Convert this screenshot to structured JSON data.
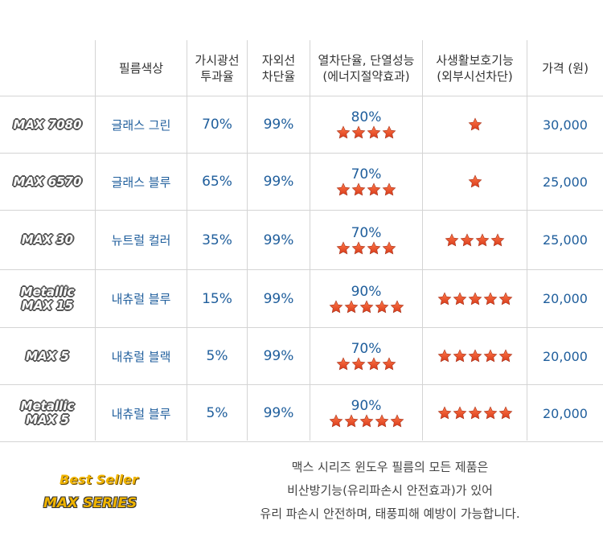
{
  "headers": {
    "film_color": "필름색상",
    "visible_1": "가시광선",
    "visible_2": "투과율",
    "uv_1": "자외선",
    "uv_2": "차단율",
    "heat_1": "열차단율, 단열성능",
    "heat_2": "(에너지절약효과)",
    "privacy_1": "사생활보호기능",
    "privacy_2": "(외부시선차단)",
    "price": "가격 (원)"
  },
  "rows": [
    {
      "model_1": "MAX 7080",
      "model_2": "",
      "color": "글래스 그린",
      "visible": "70%",
      "uv": "99%",
      "heat": "80%",
      "heat_stars": 4,
      "privacy_stars": 1,
      "price": "30,000"
    },
    {
      "model_1": "MAX 6570",
      "model_2": "",
      "color": "글래스 블루",
      "visible": "65%",
      "uv": "99%",
      "heat": "70%",
      "heat_stars": 4,
      "privacy_stars": 1,
      "price": "25,000"
    },
    {
      "model_1": "MAX 30",
      "model_2": "",
      "color": "뉴트럴 컬러",
      "visible": "35%",
      "uv": "99%",
      "heat": "70%",
      "heat_stars": 4,
      "privacy_stars": 4,
      "price": "25,000"
    },
    {
      "model_1": "Metallic",
      "model_2": "MAX 15",
      "color": "내츄럴 블루",
      "visible": "15%",
      "uv": "99%",
      "heat": "90%",
      "heat_stars": 5,
      "privacy_stars": 5,
      "price": "20,000"
    },
    {
      "model_1": "MAX 5",
      "model_2": "",
      "color": "내츄럴 블랙",
      "visible": "5%",
      "uv": "99%",
      "heat": "70%",
      "heat_stars": 4,
      "privacy_stars": 5,
      "price": "20,000"
    },
    {
      "model_1": "Metallic",
      "model_2": "MAX 5",
      "color": "내츄럴 블루",
      "visible": "5%",
      "uv": "99%",
      "heat": "90%",
      "heat_stars": 5,
      "privacy_stars": 5,
      "price": "20,000"
    }
  ],
  "footer": {
    "logo_line1": "Best Seller",
    "logo_line2": "MAX SERIES",
    "line1": "맥스 시리즈 윈도우 필름의 모든 제품은",
    "line2": "비산방기능(유리파손시 안전효과)가 있어",
    "line3": "유리 파손시 안전하며, 태풍피해 예방이 가능합니다."
  },
  "colors": {
    "text_blue": "#1f5e9c",
    "star_red": "#e84a2a",
    "logo_gold": "#f0b400"
  },
  "icons": {
    "rating": "star-icon"
  }
}
